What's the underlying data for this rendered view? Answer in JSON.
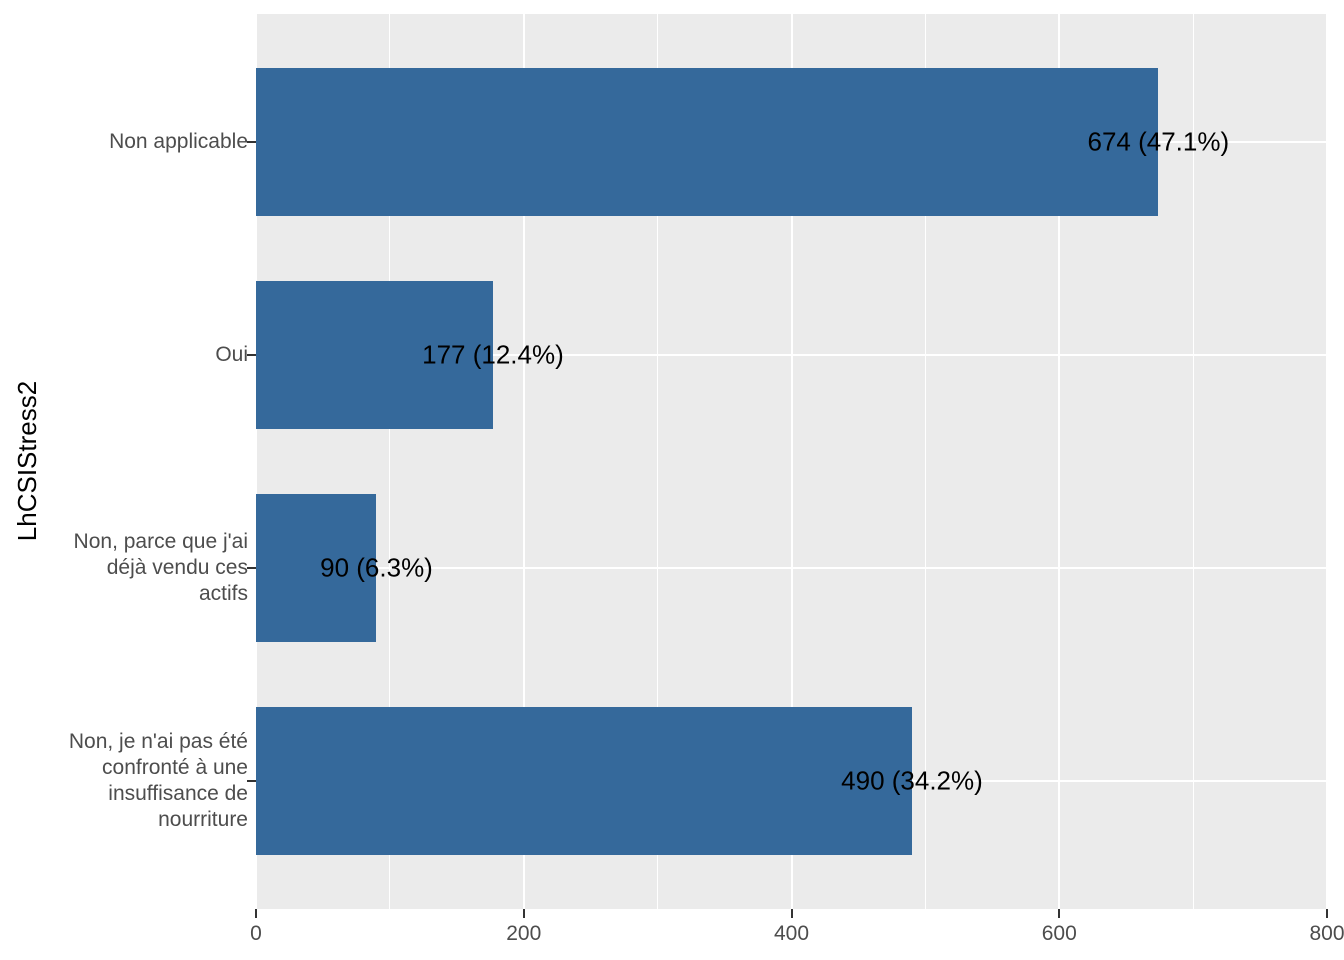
{
  "figure": {
    "background": "#FFFFFF",
    "panel_background": "#EBEBEB",
    "gridline_color": "#FFFFFF",
    "bar_color": "#35699B",
    "axis_text_color": "#4D4D4D",
    "tick_mark_color": "#333333",
    "bar_label_color": "#000000",
    "axis_title_color": "#000000"
  },
  "chart_data": {
    "type": "bar",
    "orientation": "horizontal",
    "title": "",
    "xlabel": "",
    "ylabel": "LhCSIStress2",
    "xlim": [
      0,
      800
    ],
    "x_tick_labels": [
      "0",
      "200",
      "400",
      "600",
      "800"
    ],
    "x_tick_values": [
      0,
      200,
      400,
      600,
      800
    ],
    "x_minor_gridline_values": [
      100,
      300,
      500,
      700
    ],
    "grid": "on",
    "legend_position": "none",
    "categories": [
      "Non applicable",
      "Oui",
      "Non, parce que j'ai déjà vendu ces actifs",
      "Non, je n'ai pas été confronté à une insuffisance de nourriture"
    ],
    "category_display_lines": [
      [
        "Non applicable"
      ],
      [
        "Oui"
      ],
      [
        "Non, parce que j'ai",
        "déjà vendu ces",
        "actifs"
      ],
      [
        "Non, je n'ai pas été",
        "confronté à une",
        "insuffisance de",
        "nourriture"
      ]
    ],
    "values": [
      674,
      177,
      90,
      490
    ],
    "percentages": [
      47.1,
      12.4,
      6.3,
      34.2
    ],
    "bar_labels": [
      "674 (47.1%)",
      "177 (12.4%)",
      "90 (6.3%)",
      "490 (34.2%)"
    ]
  }
}
